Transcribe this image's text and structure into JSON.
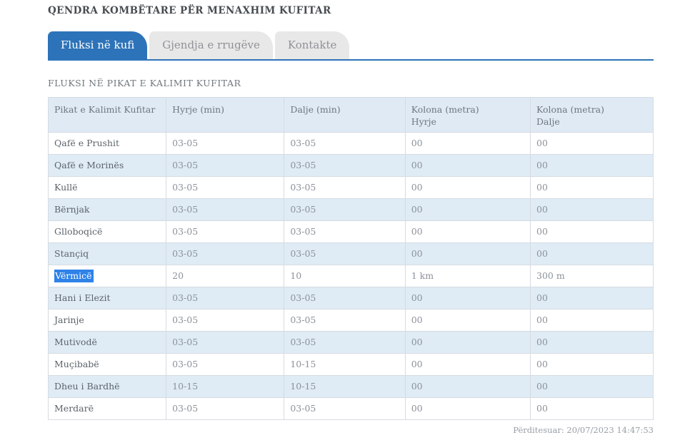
{
  "header": {
    "title": "QENDRA KOMBËTARE PËR MENAXHIM KUFITAR"
  },
  "tabs": [
    {
      "id": "fluksi-ne-kufi",
      "label": "Fluksi në kufi",
      "active": true
    },
    {
      "id": "gjendja-e-rrugeve",
      "label": "Gjendja e rrugëve",
      "active": false
    },
    {
      "id": "kontakte",
      "label": "Kontakte",
      "active": false
    }
  ],
  "section": {
    "title": "FLUKSI NË PIKAT E KALIMIT KUFITAR"
  },
  "table": {
    "columns": [
      {
        "line1": "Pikat e Kalimit Kufitar",
        "line2": ""
      },
      {
        "line1": "Hyrje (min)",
        "line2": ""
      },
      {
        "line1": "Dalje (min)",
        "line2": ""
      },
      {
        "line1": "Kolona (metra)",
        "line2": "Hyrje"
      },
      {
        "line1": "Kolona (metra)",
        "line2": "Dalje"
      }
    ],
    "rows": [
      {
        "name": "Qafë e Prushit",
        "hyrje": "03-05",
        "dalje": "03-05",
        "kolona_hyrje": "00",
        "kolona_dalje": "00",
        "selected": false
      },
      {
        "name": "Qafë e Morinës",
        "hyrje": "03-05",
        "dalje": "03-05",
        "kolona_hyrje": "00",
        "kolona_dalje": "00",
        "selected": false
      },
      {
        "name": "Kullë",
        "hyrje": "03-05",
        "dalje": "03-05",
        "kolona_hyrje": "00",
        "kolona_dalje": "00",
        "selected": false
      },
      {
        "name": "Bërnjak",
        "hyrje": "03-05",
        "dalje": "03-05",
        "kolona_hyrje": "00",
        "kolona_dalje": "00",
        "selected": false
      },
      {
        "name": "Glloboqicë",
        "hyrje": "03-05",
        "dalje": "03-05",
        "kolona_hyrje": "00",
        "kolona_dalje": "00",
        "selected": false
      },
      {
        "name": "Stançiq",
        "hyrje": "03-05",
        "dalje": "03-05",
        "kolona_hyrje": "00",
        "kolona_dalje": "00",
        "selected": false
      },
      {
        "name": "Vërmicë",
        "hyrje": "20",
        "dalje": "10",
        "kolona_hyrje": "1 km",
        "kolona_dalje": "300 m",
        "selected": true
      },
      {
        "name": "Hani i Elezit",
        "hyrje": "03-05",
        "dalje": "03-05",
        "kolona_hyrje": "00",
        "kolona_dalje": "00",
        "selected": false
      },
      {
        "name": "Jarinje",
        "hyrje": "03-05",
        "dalje": "03-05",
        "kolona_hyrje": "00",
        "kolona_dalje": "00",
        "selected": false
      },
      {
        "name": "Mutivodë",
        "hyrje": "03-05",
        "dalje": "03-05",
        "kolona_hyrje": "00",
        "kolona_dalje": "00",
        "selected": false
      },
      {
        "name": "Muçibabë",
        "hyrje": "03-05",
        "dalje": "10-15",
        "kolona_hyrje": "00",
        "kolona_dalje": "00",
        "selected": false
      },
      {
        "name": "Dheu i Bardhë",
        "hyrje": "10-15",
        "dalje": "10-15",
        "kolona_hyrje": "00",
        "kolona_dalje": "00",
        "selected": false
      },
      {
        "name": "Merdarë",
        "hyrje": "03-05",
        "dalje": "03-05",
        "kolona_hyrje": "00",
        "kolona_dalje": "00",
        "selected": false
      }
    ]
  },
  "footer": {
    "updated": "Përditesuar: 20/07/2023 14:47:53"
  },
  "colors": {
    "accent": "#2d73b9",
    "selection": "#2e82e8",
    "table-head-bg": "#dfeaf4",
    "row-alt-bg": "#dfebf5"
  }
}
